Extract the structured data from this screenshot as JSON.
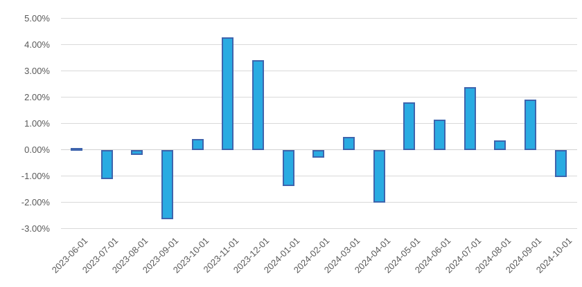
{
  "chart_data": {
    "type": "bar",
    "title": "",
    "xlabel": "",
    "ylabel": "",
    "categories": [
      "2023-06-01",
      "2023-07-01",
      "2023-08-01",
      "2023-09-01",
      "2023-10-01",
      "2023-11-01",
      "2023-12-01",
      "2024-01-01",
      "2024-02-01",
      "2024-03-01",
      "2024-04-01",
      "2024-05-01",
      "2024-06-01",
      "2024-07-01",
      "2024-08-01",
      "2024-09-01",
      "2024-10-01"
    ],
    "values": [
      0.06,
      -1.12,
      -0.2,
      -2.65,
      0.4,
      4.28,
      3.42,
      -1.38,
      -0.3,
      0.5,
      -2.02,
      1.8,
      1.15,
      2.38,
      0.35,
      1.9,
      -1.03
    ],
    "value_unit": "percent",
    "ylim": [
      -3,
      5
    ],
    "ytick_step": 1,
    "yticks": [
      {
        "value": 5,
        "label": "5.00%"
      },
      {
        "value": 4,
        "label": "4.00%"
      },
      {
        "value": 3,
        "label": "3.00%"
      },
      {
        "value": 2,
        "label": "2.00%"
      },
      {
        "value": 1,
        "label": "1.00%"
      },
      {
        "value": 0,
        "label": "0.00%"
      },
      {
        "value": -1,
        "label": "-1.00%"
      },
      {
        "value": -2,
        "label": "-2.00%"
      },
      {
        "value": -3,
        "label": "-3.00%"
      }
    ],
    "grid": true,
    "legend": false,
    "x_label_rotation_deg": 45,
    "colors": {
      "bar_fill": "#29ABE2",
      "bar_border": "#3E64AD",
      "gridline": "#D9D9D9",
      "zero_line": "#D0D0D0",
      "axis_text": "#595959",
      "background": "#FFFFFF"
    }
  }
}
